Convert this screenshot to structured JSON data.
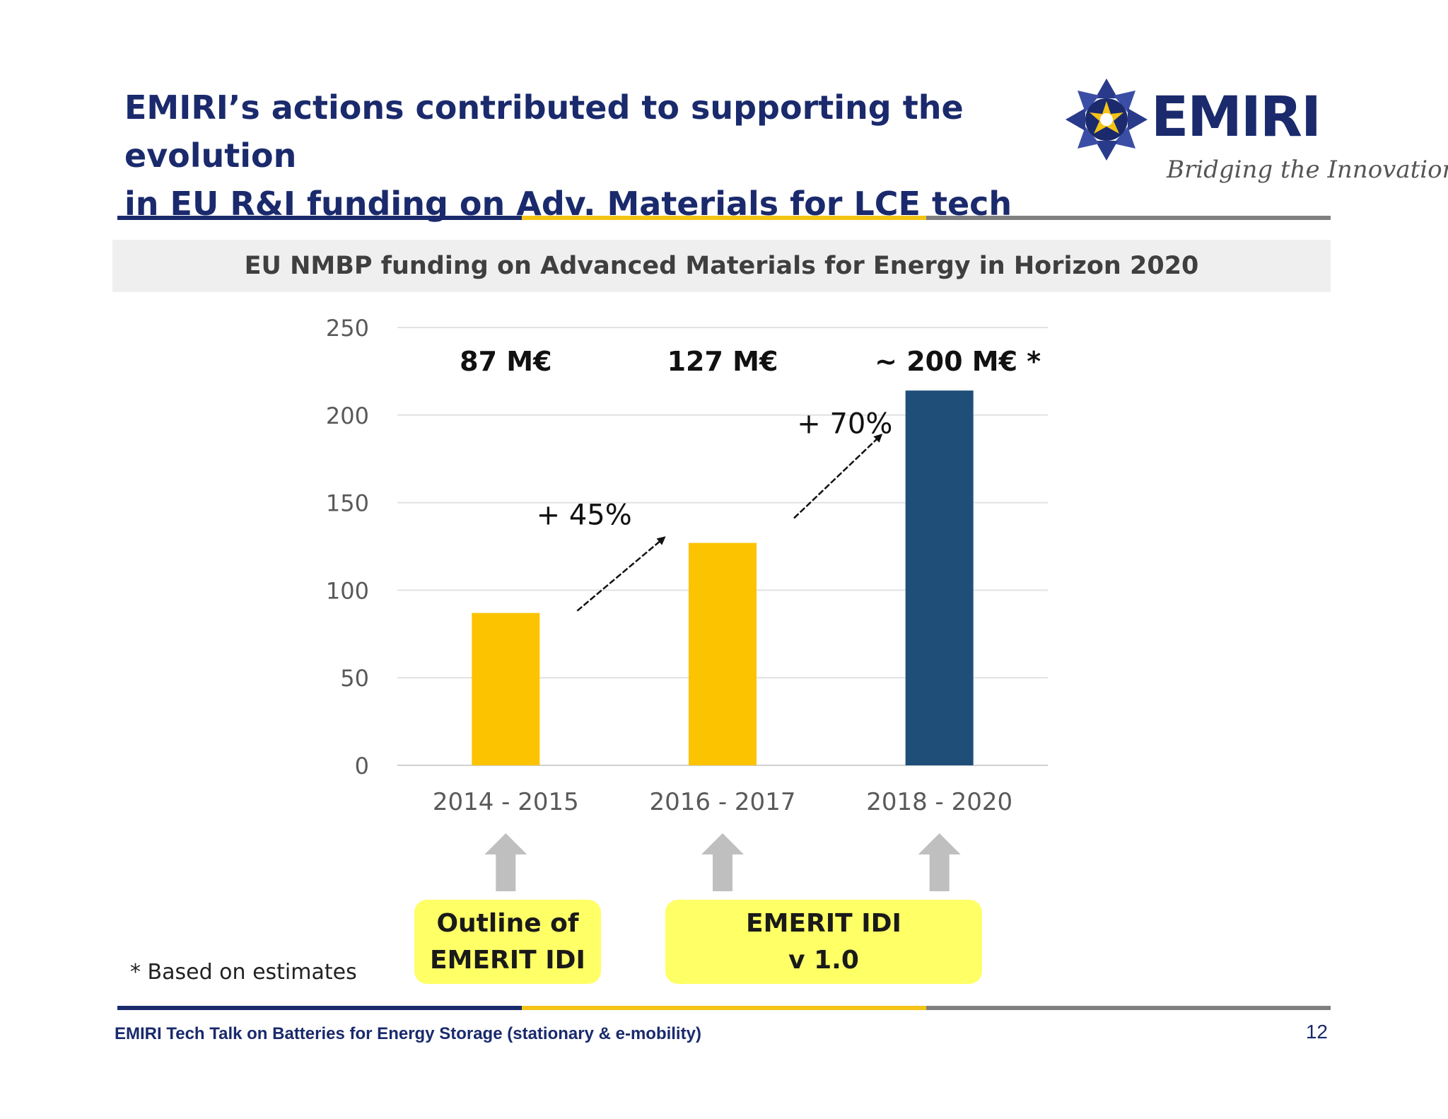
{
  "slide": {
    "title_line1": "EMIRI’s actions contributed to supporting the evolution",
    "title_line2": "in EU R&I funding on Adv. Materials for LCE tech",
    "chart_heading": "EU NMBP funding on Advanced Materials for Energy in Horizon 2020",
    "footnote": "* Based on estimates",
    "footer": "EMIRI Tech Talk on Batteries for Energy Storage (stationary & e-mobility)",
    "page_number": "12"
  },
  "logo": {
    "wordmark": "EMIRI",
    "tagline": "Bridging the Innovation Gap"
  },
  "callouts": [
    {
      "line1": "Outline of",
      "line2": "EMERIT IDI"
    },
    {
      "line1": "EMERIT IDI",
      "line2": "v 1.0"
    }
  ],
  "colors": {
    "brand_blue": "#1a2a6c",
    "accent_yellow": "#f3c316",
    "rule_gray": "#808080",
    "bar_yellow": "#fcc300",
    "bar_blue": "#1f4e79",
    "callout_yellow": "#ffff66",
    "up_arrow_gray": "#bfbfbf"
  },
  "chart_data": {
    "type": "bar",
    "title": "",
    "xlabel": "",
    "ylabel": "",
    "categories": [
      "2014 - 2015",
      "2016 - 2017",
      "2018 - 2020"
    ],
    "values": [
      87,
      127,
      214
    ],
    "bar_colors": [
      "#fcc300",
      "#fcc300",
      "#1f4e79"
    ],
    "data_labels": [
      "87 M€",
      "127 M€",
      "~ 200 M€ *"
    ],
    "ylim": [
      0,
      250
    ],
    "yticks": [
      0,
      50,
      100,
      150,
      200,
      250
    ],
    "grid": true,
    "legend": "none",
    "annotations": [
      {
        "text": "+ 45%",
        "from_category": 0,
        "to_category": 1
      },
      {
        "text": "+ 70%",
        "from_category": 1,
        "to_category": 2
      }
    ]
  }
}
